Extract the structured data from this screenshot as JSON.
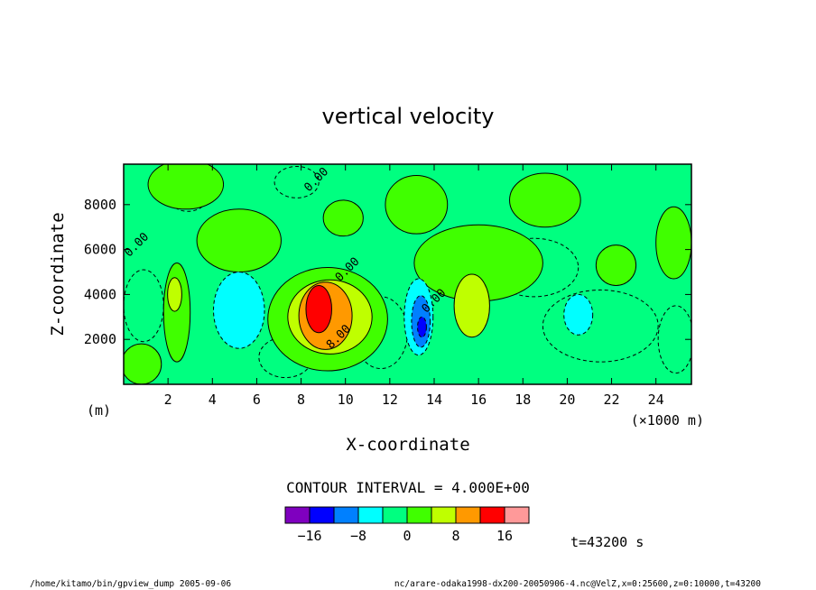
{
  "chart_data": {
    "type": "heatmap",
    "title": "vertical velocity",
    "xlabel": "X-coordinate",
    "ylabel": "Z-coordinate",
    "x_unit": "(×1000 m)",
    "y_unit": "(m)",
    "xlim": [
      0,
      25.6
    ],
    "ylim": [
      0,
      9800
    ],
    "x_ticks": [
      2,
      4,
      6,
      8,
      10,
      12,
      14,
      16,
      18,
      20,
      22,
      24
    ],
    "y_ticks": [
      2000,
      4000,
      6000,
      8000
    ],
    "contour_interval_text": "CONTOUR INTERVAL = 4.000E+00",
    "contour_labels": [
      {
        "text": "0.00",
        "x": 8.8,
        "y": 9000
      },
      {
        "text": "0.00",
        "x": 0.7,
        "y": 6100
      },
      {
        "text": "0.00",
        "x": 10.2,
        "y": 5000
      },
      {
        "text": "0.00",
        "x": 14.1,
        "y": 3600
      },
      {
        "text": "8.00",
        "x": 9.8,
        "y": 2000
      }
    ],
    "color_levels": [
      {
        "min": -20,
        "max": -16,
        "color": "#7f00bf"
      },
      {
        "min": -16,
        "max": -12,
        "color": "#0000ff"
      },
      {
        "min": -12,
        "max": -8,
        "color": "#0080ff"
      },
      {
        "min": -8,
        "max": -4,
        "color": "#00ffff"
      },
      {
        "min": -4,
        "max": 0,
        "color": "#00ff80"
      },
      {
        "min": 0,
        "max": 4,
        "color": "#40ff00"
      },
      {
        "min": 4,
        "max": 8,
        "color": "#bfff00"
      },
      {
        "min": 8,
        "max": 12,
        "color": "#ff9900"
      },
      {
        "min": 12,
        "max": 16,
        "color": "#ff0000"
      },
      {
        "min": 16,
        "max": 20,
        "color": "#ff9999"
      }
    ],
    "colorbar_tick_labels": [
      "−16",
      "−8",
      "0",
      "8",
      "16"
    ],
    "colorbar_tick_values": [
      -16,
      -8,
      0,
      8,
      16
    ],
    "regions": [
      {
        "level": -4,
        "x": 2.9,
        "y": 8400,
        "rx": 0.9,
        "ry": 700
      },
      {
        "level": -4,
        "x": 7.8,
        "y": 9000,
        "rx": 1.0,
        "ry": 700
      },
      {
        "level": -4,
        "x": 0.9,
        "y": 3500,
        "rx": 0.9,
        "ry": 1600
      },
      {
        "level": -4,
        "x": 7.3,
        "y": 1200,
        "rx": 1.2,
        "ry": 900
      },
      {
        "level": -4,
        "x": 11.6,
        "y": 2300,
        "rx": 1.2,
        "ry": 1600
      },
      {
        "level": -4,
        "x": 18.5,
        "y": 5200,
        "rx": 2.0,
        "ry": 1300
      },
      {
        "level": -4,
        "x": 21.5,
        "y": 2600,
        "rx": 2.6,
        "ry": 1600
      },
      {
        "level": -4,
        "x": 24.9,
        "y": 2000,
        "rx": 0.8,
        "ry": 1500
      },
      {
        "level": 0,
        "x": 2.8,
        "y": 8900,
        "rx": 1.7,
        "ry": 1100
      },
      {
        "level": 0,
        "x": 5.2,
        "y": 6400,
        "rx": 1.9,
        "ry": 1400
      },
      {
        "level": 0,
        "x": 0.8,
        "y": 900,
        "rx": 0.9,
        "ry": 900
      },
      {
        "level": 0,
        "x": 9.2,
        "y": 2900,
        "rx": 2.7,
        "ry": 2300
      },
      {
        "level": 0,
        "x": 9.9,
        "y": 7400,
        "rx": 0.9,
        "ry": 800
      },
      {
        "level": 0,
        "x": 13.2,
        "y": 8000,
        "rx": 1.4,
        "ry": 1300
      },
      {
        "level": 0,
        "x": 16.0,
        "y": 5400,
        "rx": 2.9,
        "ry": 1700
      },
      {
        "level": 0,
        "x": 19.0,
        "y": 8200,
        "rx": 1.6,
        "ry": 1200
      },
      {
        "level": 0,
        "x": 22.2,
        "y": 5300,
        "rx": 0.9,
        "ry": 900
      },
      {
        "level": 0,
        "x": 24.8,
        "y": 6300,
        "rx": 0.8,
        "ry": 1600
      },
      {
        "level": 0,
        "x": 2.4,
        "y": 3200,
        "rx": 0.6,
        "ry": 2200
      },
      {
        "level": 4,
        "x": 2.3,
        "y": 4000,
        "rx": 0.32,
        "ry": 750
      },
      {
        "level": 4,
        "x": 9.3,
        "y": 3000,
        "rx": 1.9,
        "ry": 1650
      },
      {
        "level": 4,
        "x": 15.7,
        "y": 3500,
        "rx": 0.8,
        "ry": 1400
      },
      {
        "level": 8,
        "x": 9.1,
        "y": 3050,
        "rx": 1.2,
        "ry": 1500
      },
      {
        "level": 12,
        "x": 8.8,
        "y": 3350,
        "rx": 0.58,
        "ry": 1050
      },
      {
        "level": -8,
        "x": 5.2,
        "y": 3300,
        "rx": 1.15,
        "ry": 1700
      },
      {
        "level": -8,
        "x": 20.5,
        "y": 3100,
        "rx": 0.65,
        "ry": 900
      },
      {
        "level": -8,
        "x": 13.3,
        "y": 3000,
        "rx": 0.65,
        "ry": 1700
      },
      {
        "level": -12,
        "x": 13.4,
        "y": 2800,
        "rx": 0.42,
        "ry": 1150
      },
      {
        "level": -16,
        "x": 13.45,
        "y": 2550,
        "rx": 0.2,
        "ry": 450
      }
    ]
  },
  "time_text": "t=43200 s",
  "footer_left": "/home/kitamo/bin/gpview_dump  2005-09-06",
  "footer_right": "nc/arare-odaka1998-dx200-20050906-4.nc@VelZ,x=0:25600,z=0:10000,t=43200"
}
